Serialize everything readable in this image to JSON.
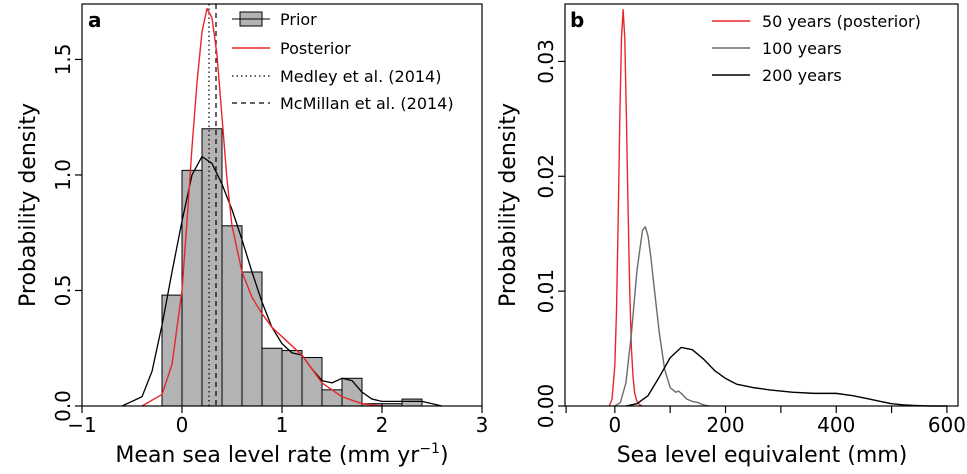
{
  "chart_data": [
    {
      "panel": "a",
      "type": "histogram",
      "xlabel": "Mean sea level rate (mm yr",
      "xlabel_sup": "−1",
      "xlabel_close": ")",
      "ylabel": "Probability density",
      "xlim": [
        -1,
        3
      ],
      "ylim": [
        0,
        1.75
      ],
      "x_ticks": [
        {
          "value": -1,
          "label": "−1"
        },
        {
          "value": 0,
          "label": "0"
        },
        {
          "value": 1,
          "label": "1"
        },
        {
          "value": 2,
          "label": "2"
        },
        {
          "value": 3,
          "label": "3"
        }
      ],
      "y_ticks": [
        {
          "value": 0,
          "label": "0.0"
        },
        {
          "value": 0.5,
          "label": "0.5"
        },
        {
          "value": 1.0,
          "label": "1.0"
        },
        {
          "value": 1.5,
          "label": "1.5"
        }
      ],
      "bin_edges": [
        -0.2,
        0.0,
        0.2,
        0.4,
        0.6,
        0.8,
        1.0,
        1.2,
        1.4,
        1.6,
        1.8,
        2.0,
        2.2,
        2.4
      ],
      "bins": [
        0.48,
        1.02,
        1.2,
        0.78,
        0.58,
        0.25,
        0.24,
        0.21,
        0.07,
        0.12,
        0.01,
        0.01,
        0.03
      ],
      "prior_density": {
        "x": [
          -0.6,
          -0.4,
          -0.3,
          -0.2,
          -0.1,
          0.0,
          0.1,
          0.2,
          0.3,
          0.4,
          0.5,
          0.6,
          0.7,
          0.8,
          0.9,
          1.0,
          1.1,
          1.2,
          1.3,
          1.4,
          1.5,
          1.6,
          1.7,
          1.8,
          1.9,
          2.0,
          2.2,
          2.4,
          2.6
        ],
        "y": [
          0.0,
          0.04,
          0.15,
          0.35,
          0.58,
          0.8,
          1.0,
          1.08,
          1.05,
          0.96,
          0.85,
          0.72,
          0.58,
          0.45,
          0.34,
          0.27,
          0.23,
          0.22,
          0.16,
          0.11,
          0.1,
          0.12,
          0.11,
          0.06,
          0.03,
          0.02,
          0.02,
          0.02,
          0.0
        ]
      },
      "posterior_density": {
        "x": [
          -0.4,
          -0.2,
          -0.1,
          0.0,
          0.05,
          0.1,
          0.15,
          0.2,
          0.25,
          0.3,
          0.35,
          0.4,
          0.45,
          0.5,
          0.6,
          0.7,
          0.8,
          0.9,
          1.0,
          1.1,
          1.2,
          1.3,
          1.4,
          1.6,
          1.8,
          2.0
        ],
        "y": [
          0.0,
          0.05,
          0.18,
          0.5,
          0.8,
          1.12,
          1.4,
          1.62,
          1.72,
          1.68,
          1.52,
          1.25,
          0.98,
          0.78,
          0.58,
          0.47,
          0.4,
          0.34,
          0.3,
          0.26,
          0.22,
          0.16,
          0.1,
          0.04,
          0.01,
          0.0
        ]
      },
      "reference_lines": [
        {
          "name": "Medley et al. (2014)",
          "x": 0.27,
          "style": "dotted"
        },
        {
          "name": "McMillan et al. (2014)",
          "x": 0.34,
          "style": "dashed"
        }
      ],
      "legend": {
        "placement": "top-right",
        "entries": [
          {
            "label": "Prior",
            "kind": "box",
            "color": "#b3b3b3"
          },
          {
            "label": "Posterior",
            "kind": "line",
            "color": "#e8262a"
          },
          {
            "label": "Medley et al. (2014)",
            "kind": "dotted",
            "color": "#000000"
          },
          {
            "label": "McMillan et al. (2014)",
            "kind": "dashed",
            "color": "#000000"
          }
        ]
      }
    },
    {
      "panel": "b",
      "type": "line",
      "xlabel": "Sea level equivalent (mm)",
      "ylabel": "Probability density",
      "xlim": [
        -90,
        620
      ],
      "ylim": [
        0,
        0.035
      ],
      "x_ticks": [
        {
          "value": 0,
          "label": "0"
        },
        {
          "value": 200,
          "label": "200"
        },
        {
          "value": 400,
          "label": "400"
        },
        {
          "value": 600,
          "label": "600"
        }
      ],
      "x_minor_ticks": [
        -100,
        100,
        300,
        500
      ],
      "y_ticks": [
        {
          "value": 0,
          "label": "0.00"
        },
        {
          "value": 0.01,
          "label": "0.01"
        },
        {
          "value": 0.02,
          "label": "0.02"
        },
        {
          "value": 0.03,
          "label": "0.03"
        }
      ],
      "series": [
        {
          "name": "50 years (posterior)",
          "color": "#e8262a",
          "x": [
            -10,
            -5,
            0,
            3,
            6,
            9,
            12,
            15,
            18,
            21,
            24,
            27,
            30,
            33,
            36,
            40,
            45,
            50
          ],
          "y": [
            0.0,
            0.0006,
            0.0035,
            0.0082,
            0.016,
            0.025,
            0.032,
            0.0345,
            0.032,
            0.025,
            0.017,
            0.01,
            0.005,
            0.0025,
            0.0011,
            0.0004,
            0.0001,
            0.0
          ]
        },
        {
          "name": "100 years",
          "color": "#6b6b6b",
          "x": [
            0,
            10,
            20,
            30,
            40,
            50,
            55,
            60,
            65,
            70,
            80,
            90,
            100,
            110,
            115,
            120,
            130,
            140,
            150,
            160,
            170
          ],
          "y": [
            0.0,
            0.0003,
            0.002,
            0.0063,
            0.0118,
            0.0153,
            0.0156,
            0.0148,
            0.013,
            0.0108,
            0.0065,
            0.0032,
            0.0016,
            0.0012,
            0.0013,
            0.0011,
            0.0006,
            0.0004,
            0.0003,
            0.0001,
            0.0
          ]
        },
        {
          "name": "200 years",
          "color": "#000000",
          "x": [
            20,
            40,
            60,
            80,
            100,
            120,
            140,
            160,
            180,
            200,
            220,
            250,
            280,
            320,
            360,
            400,
            430,
            460,
            480,
            500,
            520,
            540,
            570,
            600
          ],
          "y": [
            0.0,
            0.0002,
            0.0009,
            0.0025,
            0.0042,
            0.0051,
            0.0049,
            0.0041,
            0.0031,
            0.0024,
            0.0019,
            0.0016,
            0.0014,
            0.0012,
            0.0011,
            0.0011,
            0.0009,
            0.0006,
            0.0004,
            0.0002,
            0.0001,
            5e-05,
            0.0,
            0.0
          ]
        }
      ],
      "legend": {
        "placement": "top-right",
        "entries": [
          {
            "label": "50 years (posterior)",
            "color": "#e8262a"
          },
          {
            "label": "100 years",
            "color": "#6b6b6b"
          },
          {
            "label": "200 years",
            "color": "#000000"
          }
        ]
      }
    }
  ]
}
